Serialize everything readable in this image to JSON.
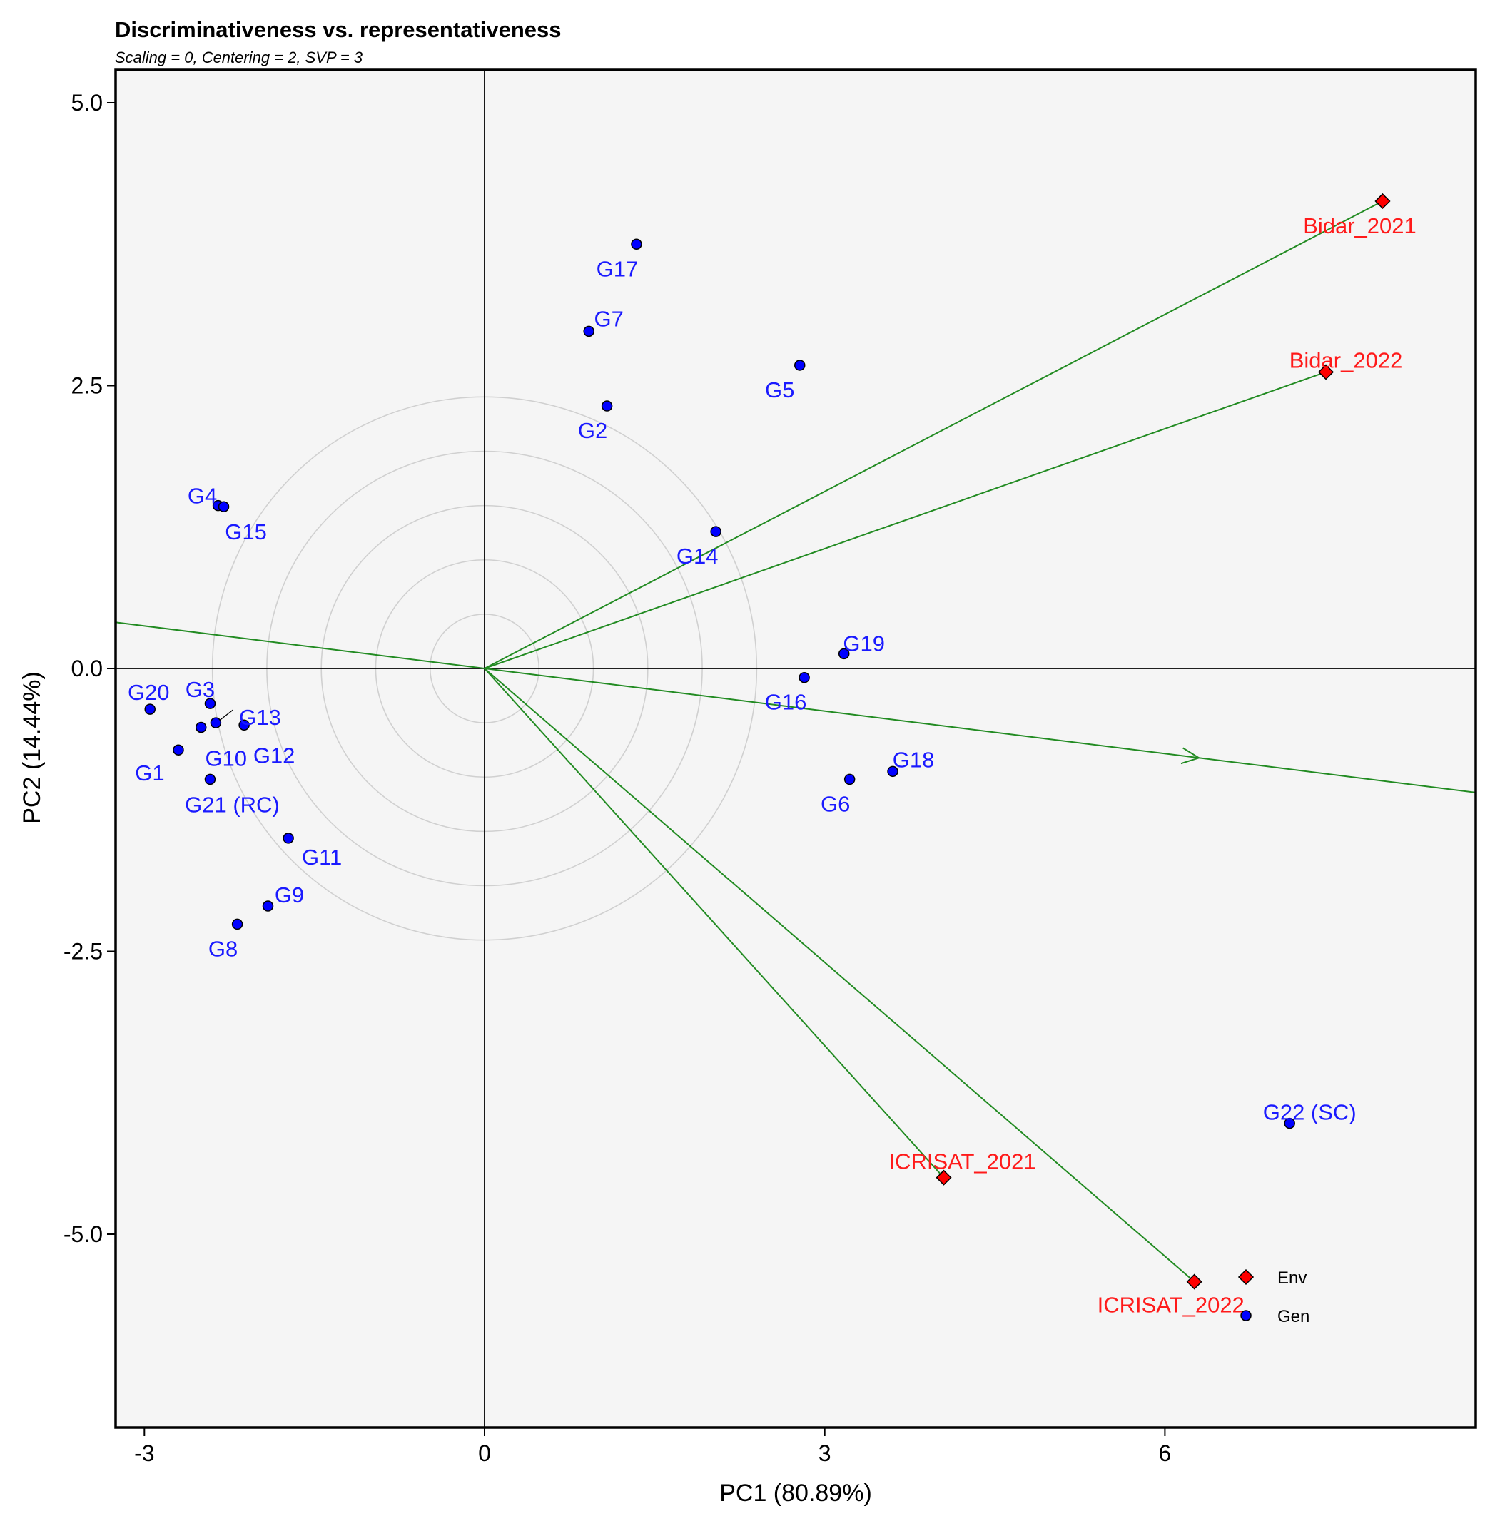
{
  "chart_data": {
    "type": "scatter",
    "title": "Discriminativeness vs. representativeness",
    "subtitle": "Scaling = 0, Centering = 2, SVP = 3",
    "xlabel": "PC1 (80.89%)",
    "ylabel": "PC2 (14.44%)",
    "xlim": [
      -3.25,
      8.75
    ],
    "ylim": [
      -6.7,
      5.3
    ],
    "x_ticks": [
      {
        "value": -3,
        "label": "-3"
      },
      {
        "value": 0,
        "label": "0"
      },
      {
        "value": 3,
        "label": "3"
      },
      {
        "value": 6,
        "label": "6"
      }
    ],
    "y_ticks": [
      {
        "value": 5.0,
        "label": "5.0"
      },
      {
        "value": 2.5,
        "label": "2.5"
      },
      {
        "value": 0.0,
        "label": "0.0"
      },
      {
        "value": -2.5,
        "label": "-2.5"
      },
      {
        "value": -5.0,
        "label": "-5.0"
      }
    ],
    "concentric_circle_radii": [
      0.48,
      0.96,
      1.44,
      1.92,
      2.4
    ],
    "average_environment_axis": {
      "direction": [
        6.3,
        -0.79
      ],
      "arrow_at": [
        6.3,
        -0.79
      ]
    },
    "colors": {
      "genotype": "#0000ff",
      "genotype_label": "#1a1aff",
      "environment": "#ff0000",
      "environment_label": "#ff1a1a",
      "vector": "#228b22",
      "panel_bg": "#f5f5f5",
      "circle": "#d0d0d0"
    },
    "series": [
      {
        "name": "Gen",
        "marker": "circle",
        "points": [
          {
            "label": "G1",
            "x": -2.7,
            "y": -0.72
          },
          {
            "label": "G2",
            "x": 1.08,
            "y": 2.32
          },
          {
            "label": "G3",
            "x": -2.42,
            "y": -0.31
          },
          {
            "label": "G4",
            "x": -2.35,
            "y": 1.44
          },
          {
            "label": "G5",
            "x": 2.78,
            "y": 2.68
          },
          {
            "label": "G6",
            "x": 3.22,
            "y": -0.98
          },
          {
            "label": "G7",
            "x": 0.92,
            "y": 2.98
          },
          {
            "label": "G8",
            "x": -2.18,
            "y": -2.26
          },
          {
            "label": "G9",
            "x": -1.91,
            "y": -2.1
          },
          {
            "label": "G10",
            "x": -2.5,
            "y": -0.52
          },
          {
            "label": "G11",
            "x": -1.73,
            "y": -1.5
          },
          {
            "label": "G12",
            "x": -2.12,
            "y": -0.5
          },
          {
            "label": "G13",
            "x": -2.37,
            "y": -0.48
          },
          {
            "label": "G14",
            "x": 2.04,
            "y": 1.21
          },
          {
            "label": "G15",
            "x": -2.3,
            "y": 1.43
          },
          {
            "label": "G16",
            "x": 2.82,
            "y": -0.08
          },
          {
            "label": "G17",
            "x": 1.34,
            "y": 3.75
          },
          {
            "label": "G18",
            "x": 3.6,
            "y": -0.91
          },
          {
            "label": "G19",
            "x": 3.17,
            "y": 0.13
          },
          {
            "label": "G20",
            "x": -2.95,
            "y": -0.36
          },
          {
            "label": "G21 (RC)",
            "x": -2.42,
            "y": -0.98
          },
          {
            "label": "G22 (SC)",
            "x": 7.1,
            "y": -4.02
          }
        ]
      },
      {
        "name": "Env",
        "marker": "diamond",
        "points": [
          {
            "label": "Bidar_2021",
            "x": 7.92,
            "y": 4.13
          },
          {
            "label": "Bidar_2022",
            "x": 7.42,
            "y": 2.62
          },
          {
            "label": "ICRISAT_2021",
            "x": 4.05,
            "y": -4.5
          },
          {
            "label": "ICRISAT_2022",
            "x": 6.26,
            "y": -5.42
          }
        ]
      }
    ],
    "legend": {
      "placement": "bottom-right",
      "entries": [
        {
          "label": "Env",
          "marker": "diamond"
        },
        {
          "label": "Gen",
          "marker": "circle"
        }
      ]
    }
  }
}
